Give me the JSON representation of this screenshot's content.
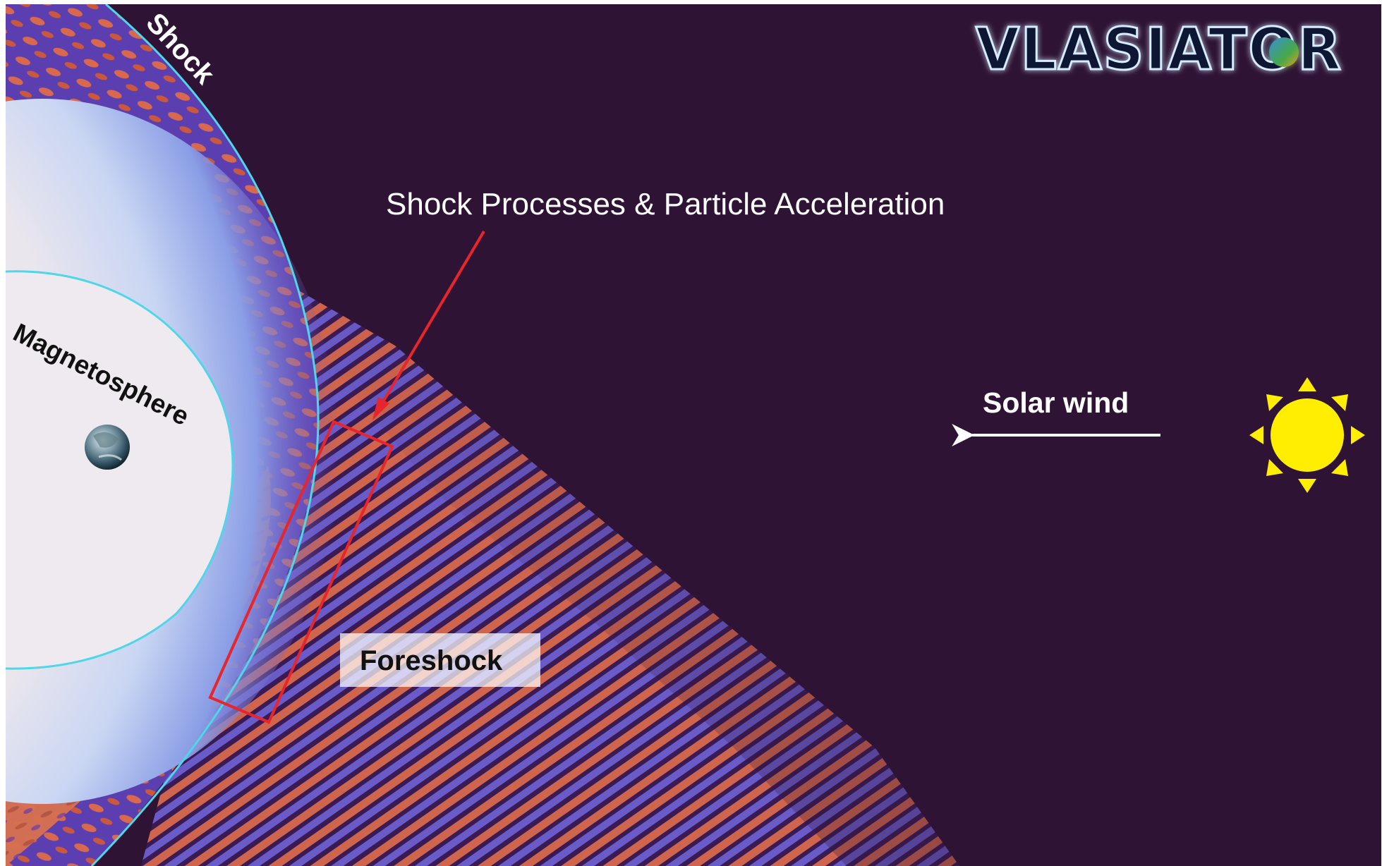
{
  "logo": {
    "text": "VLASIATOR"
  },
  "labels": {
    "shock": "Shock",
    "magnetosphere": "Magnetosphere",
    "callout": "Shock Processes & Particle Acceleration",
    "solar_wind": "Solar wind",
    "foreshock": "Foreshock"
  },
  "icons": [
    "earth-icon",
    "sun-icon",
    "solar-wind-arrow-icon",
    "callout-arrow-icon"
  ],
  "colors": {
    "background": "#2e1334",
    "shock_line": "#4fd6e8",
    "callout_box": "#e8252a",
    "sun": "#ffee00",
    "foreshock_warm": "#d9694e",
    "foreshock_cool": "#6c5fd0",
    "magnetosphere_core": "#f3eef3",
    "magnetosphere_halo": "#9fb9ea"
  }
}
